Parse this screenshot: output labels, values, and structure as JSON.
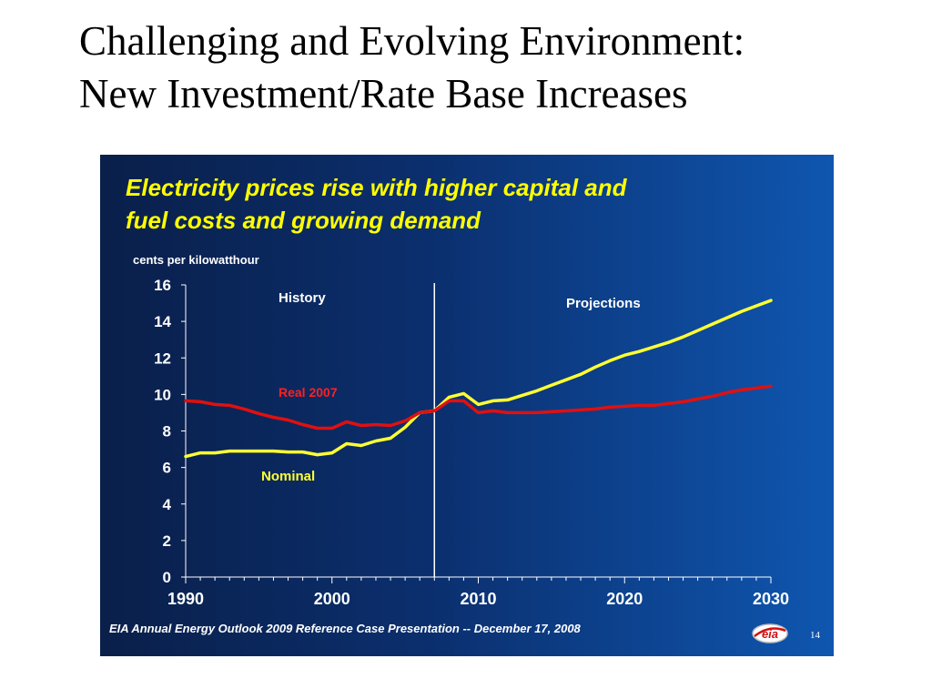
{
  "slide": {
    "title_line1": "Challenging and Evolving Environment:",
    "title_line2": "New Investment/Rate Base Increases"
  },
  "panel": {
    "headline_line1": "Electricity prices rise with higher capital and",
    "headline_line2": "fuel costs and growing demand",
    "unit_label": "cents per kilowatthour",
    "footer": "EIA Annual Energy Outlook 2009 Reference Case Presentation -- December 17, 2008",
    "logo_text": "eia",
    "page_number": "14"
  },
  "colors": {
    "nominal": "#ffff33",
    "real": "#e01010",
    "axis": "#ffffff",
    "history_label": "#ffffff",
    "real_label": "#ff2020",
    "nominal_label": "#ffff33"
  },
  "chart_data": {
    "type": "line",
    "xlim": [
      1990,
      2030
    ],
    "ylim": [
      0,
      16
    ],
    "x_ticks": [
      "1990",
      "2000",
      "2010",
      "2020",
      "2030"
    ],
    "y_ticks": [
      "0",
      "2",
      "4",
      "6",
      "8",
      "10",
      "12",
      "14",
      "16"
    ],
    "grid": false,
    "divider_year": 2007,
    "annotations": {
      "history": "History",
      "projections": "Projections",
      "real": "Real 2007",
      "nominal": "Nominal"
    },
    "series": [
      {
        "name": "Nominal",
        "x": [
          1990,
          1991,
          1992,
          1993,
          1994,
          1995,
          1996,
          1997,
          1998,
          1999,
          2000,
          2001,
          2002,
          2003,
          2004,
          2005,
          2006,
          2007,
          2008,
          2009,
          2010,
          2011,
          2012,
          2013,
          2014,
          2015,
          2016,
          2017,
          2018,
          2019,
          2020,
          2021,
          2022,
          2023,
          2024,
          2025,
          2026,
          2027,
          2028,
          2029,
          2030
        ],
        "y": [
          6.6,
          6.8,
          6.8,
          6.9,
          6.9,
          6.9,
          6.9,
          6.85,
          6.85,
          6.7,
          6.8,
          7.3,
          7.2,
          7.45,
          7.6,
          8.2,
          9.0,
          9.1,
          9.85,
          10.05,
          9.45,
          9.65,
          9.7,
          9.95,
          10.2,
          10.5,
          10.8,
          11.1,
          11.5,
          11.85,
          12.15,
          12.35,
          12.6,
          12.85,
          13.15,
          13.5,
          13.85,
          14.2,
          14.55,
          14.85,
          15.15
        ]
      },
      {
        "name": "Real 2007",
        "x": [
          1990,
          1991,
          1992,
          1993,
          1994,
          1995,
          1996,
          1997,
          1998,
          1999,
          2000,
          2001,
          2002,
          2003,
          2004,
          2005,
          2006,
          2007,
          2008,
          2009,
          2010,
          2011,
          2012,
          2013,
          2014,
          2015,
          2016,
          2017,
          2018,
          2019,
          2020,
          2021,
          2022,
          2023,
          2024,
          2025,
          2026,
          2027,
          2028,
          2029,
          2030
        ],
        "y": [
          9.65,
          9.6,
          9.45,
          9.4,
          9.2,
          8.95,
          8.75,
          8.6,
          8.35,
          8.15,
          8.15,
          8.5,
          8.3,
          8.35,
          8.3,
          8.55,
          9.0,
          9.1,
          9.65,
          9.65,
          9.0,
          9.1,
          9.0,
          9.0,
          9.0,
          9.05,
          9.1,
          9.15,
          9.2,
          9.3,
          9.35,
          9.4,
          9.4,
          9.5,
          9.6,
          9.75,
          9.9,
          10.1,
          10.25,
          10.35,
          10.45
        ]
      }
    ]
  }
}
